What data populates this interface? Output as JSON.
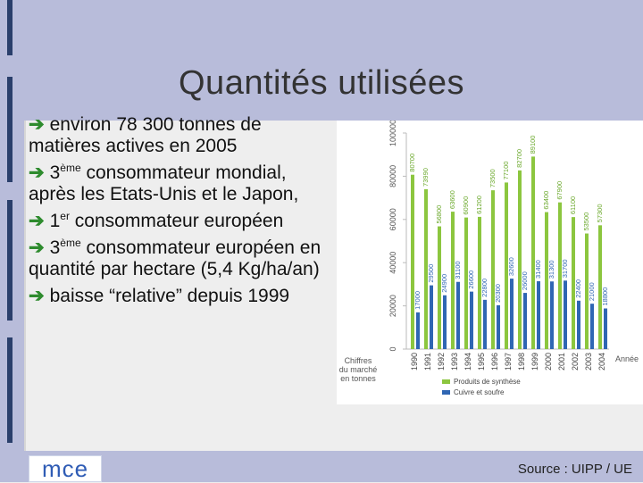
{
  "slide": {
    "title": "Quantités utilisées",
    "source": "Source : UIPP / UE",
    "logo_text": "mce",
    "bullets": [
      {
        "prefix": "",
        "sup": "",
        "text": "environ 78 300 tonnes de matières actives en 2005"
      },
      {
        "prefix": "3",
        "sup": "ème",
        "text": " consommateur mondial, après les Etats-Unis et le Japon,"
      },
      {
        "prefix": "1",
        "sup": "er",
        "text": " consommateur européen"
      },
      {
        "prefix": "3",
        "sup": "ème",
        "text": " consommateur européen en quantité par hectare (5,4 Kg/ha/an)"
      },
      {
        "prefix": "",
        "sup": "",
        "text": "baisse “relative” depuis 1999"
      }
    ],
    "arrow_icon": "right-arrow-icon"
  },
  "colors": {
    "green": "#8cc63f",
    "blue": "#2f66b3",
    "axis": "#bbbbbb",
    "arrow": "#2e8b2e"
  },
  "chart_data": {
    "type": "bar",
    "categories": [
      "1990",
      "1991",
      "1992",
      "1993",
      "1994",
      "1995",
      "1996",
      "1997",
      "1998",
      "1999",
      "2000",
      "2001",
      "2002",
      "2003",
      "2004"
    ],
    "series": [
      {
        "name": "Produits de synthèse",
        "values": [
          80700,
          73990,
          56800,
          63600,
          60900,
          61200,
          73500,
          77100,
          82700,
          89100,
          63400,
          67900,
          61100,
          53500,
          57300
        ]
      },
      {
        "name": "Cuivre et soufre",
        "values": [
          17000,
          29500,
          24900,
          31100,
          26600,
          22800,
          20300,
          32600,
          26000,
          31400,
          31300,
          31700,
          22400,
          21000,
          18800
        ]
      }
    ],
    "ylabel": "Chiffres du marché en tonnes",
    "xlabel": "Année",
    "y_ticks": [
      0,
      20000,
      40000,
      60000,
      80000,
      100000
    ],
    "ylim": [
      0,
      100000
    ],
    "legend_position": "bottom",
    "data_labels": true,
    "grid": false
  }
}
